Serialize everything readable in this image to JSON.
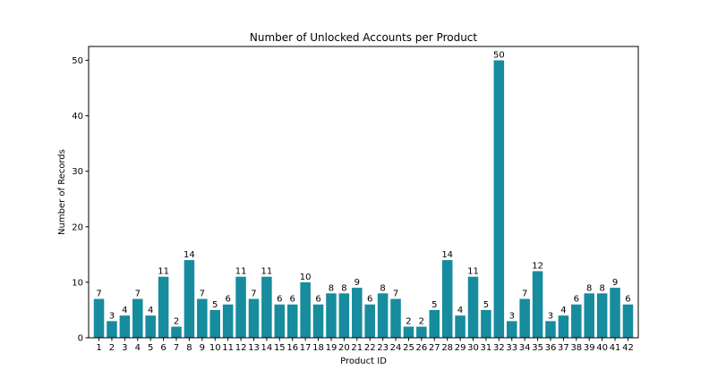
{
  "chart_data": {
    "type": "bar",
    "title": "Number of Unlocked Accounts per Product",
    "xlabel": "Product ID",
    "ylabel": "Number of Records",
    "categories": [
      "1",
      "2",
      "3",
      "4",
      "5",
      "6",
      "7",
      "8",
      "9",
      "10",
      "11",
      "12",
      "13",
      "14",
      "15",
      "16",
      "17",
      "18",
      "19",
      "20",
      "21",
      "22",
      "23",
      "24",
      "25",
      "26",
      "27",
      "28",
      "29",
      "30",
      "31",
      "32",
      "33",
      "34",
      "35",
      "36",
      "37",
      "38",
      "39",
      "40",
      "41",
      "42"
    ],
    "values": [
      7,
      3,
      4,
      7,
      4,
      11,
      2,
      14,
      7,
      5,
      6,
      11,
      7,
      11,
      6,
      6,
      10,
      6,
      8,
      8,
      9,
      6,
      8,
      7,
      2,
      2,
      5,
      14,
      4,
      11,
      5,
      50,
      3,
      7,
      12,
      3,
      4,
      6,
      8,
      8,
      9,
      6
    ],
    "ylim": [
      0,
      52.5
    ],
    "yticks": [
      0,
      10,
      20,
      30,
      40,
      50
    ],
    "bar_color": "#168c9e",
    "grid": false,
    "data_labels": true
  }
}
